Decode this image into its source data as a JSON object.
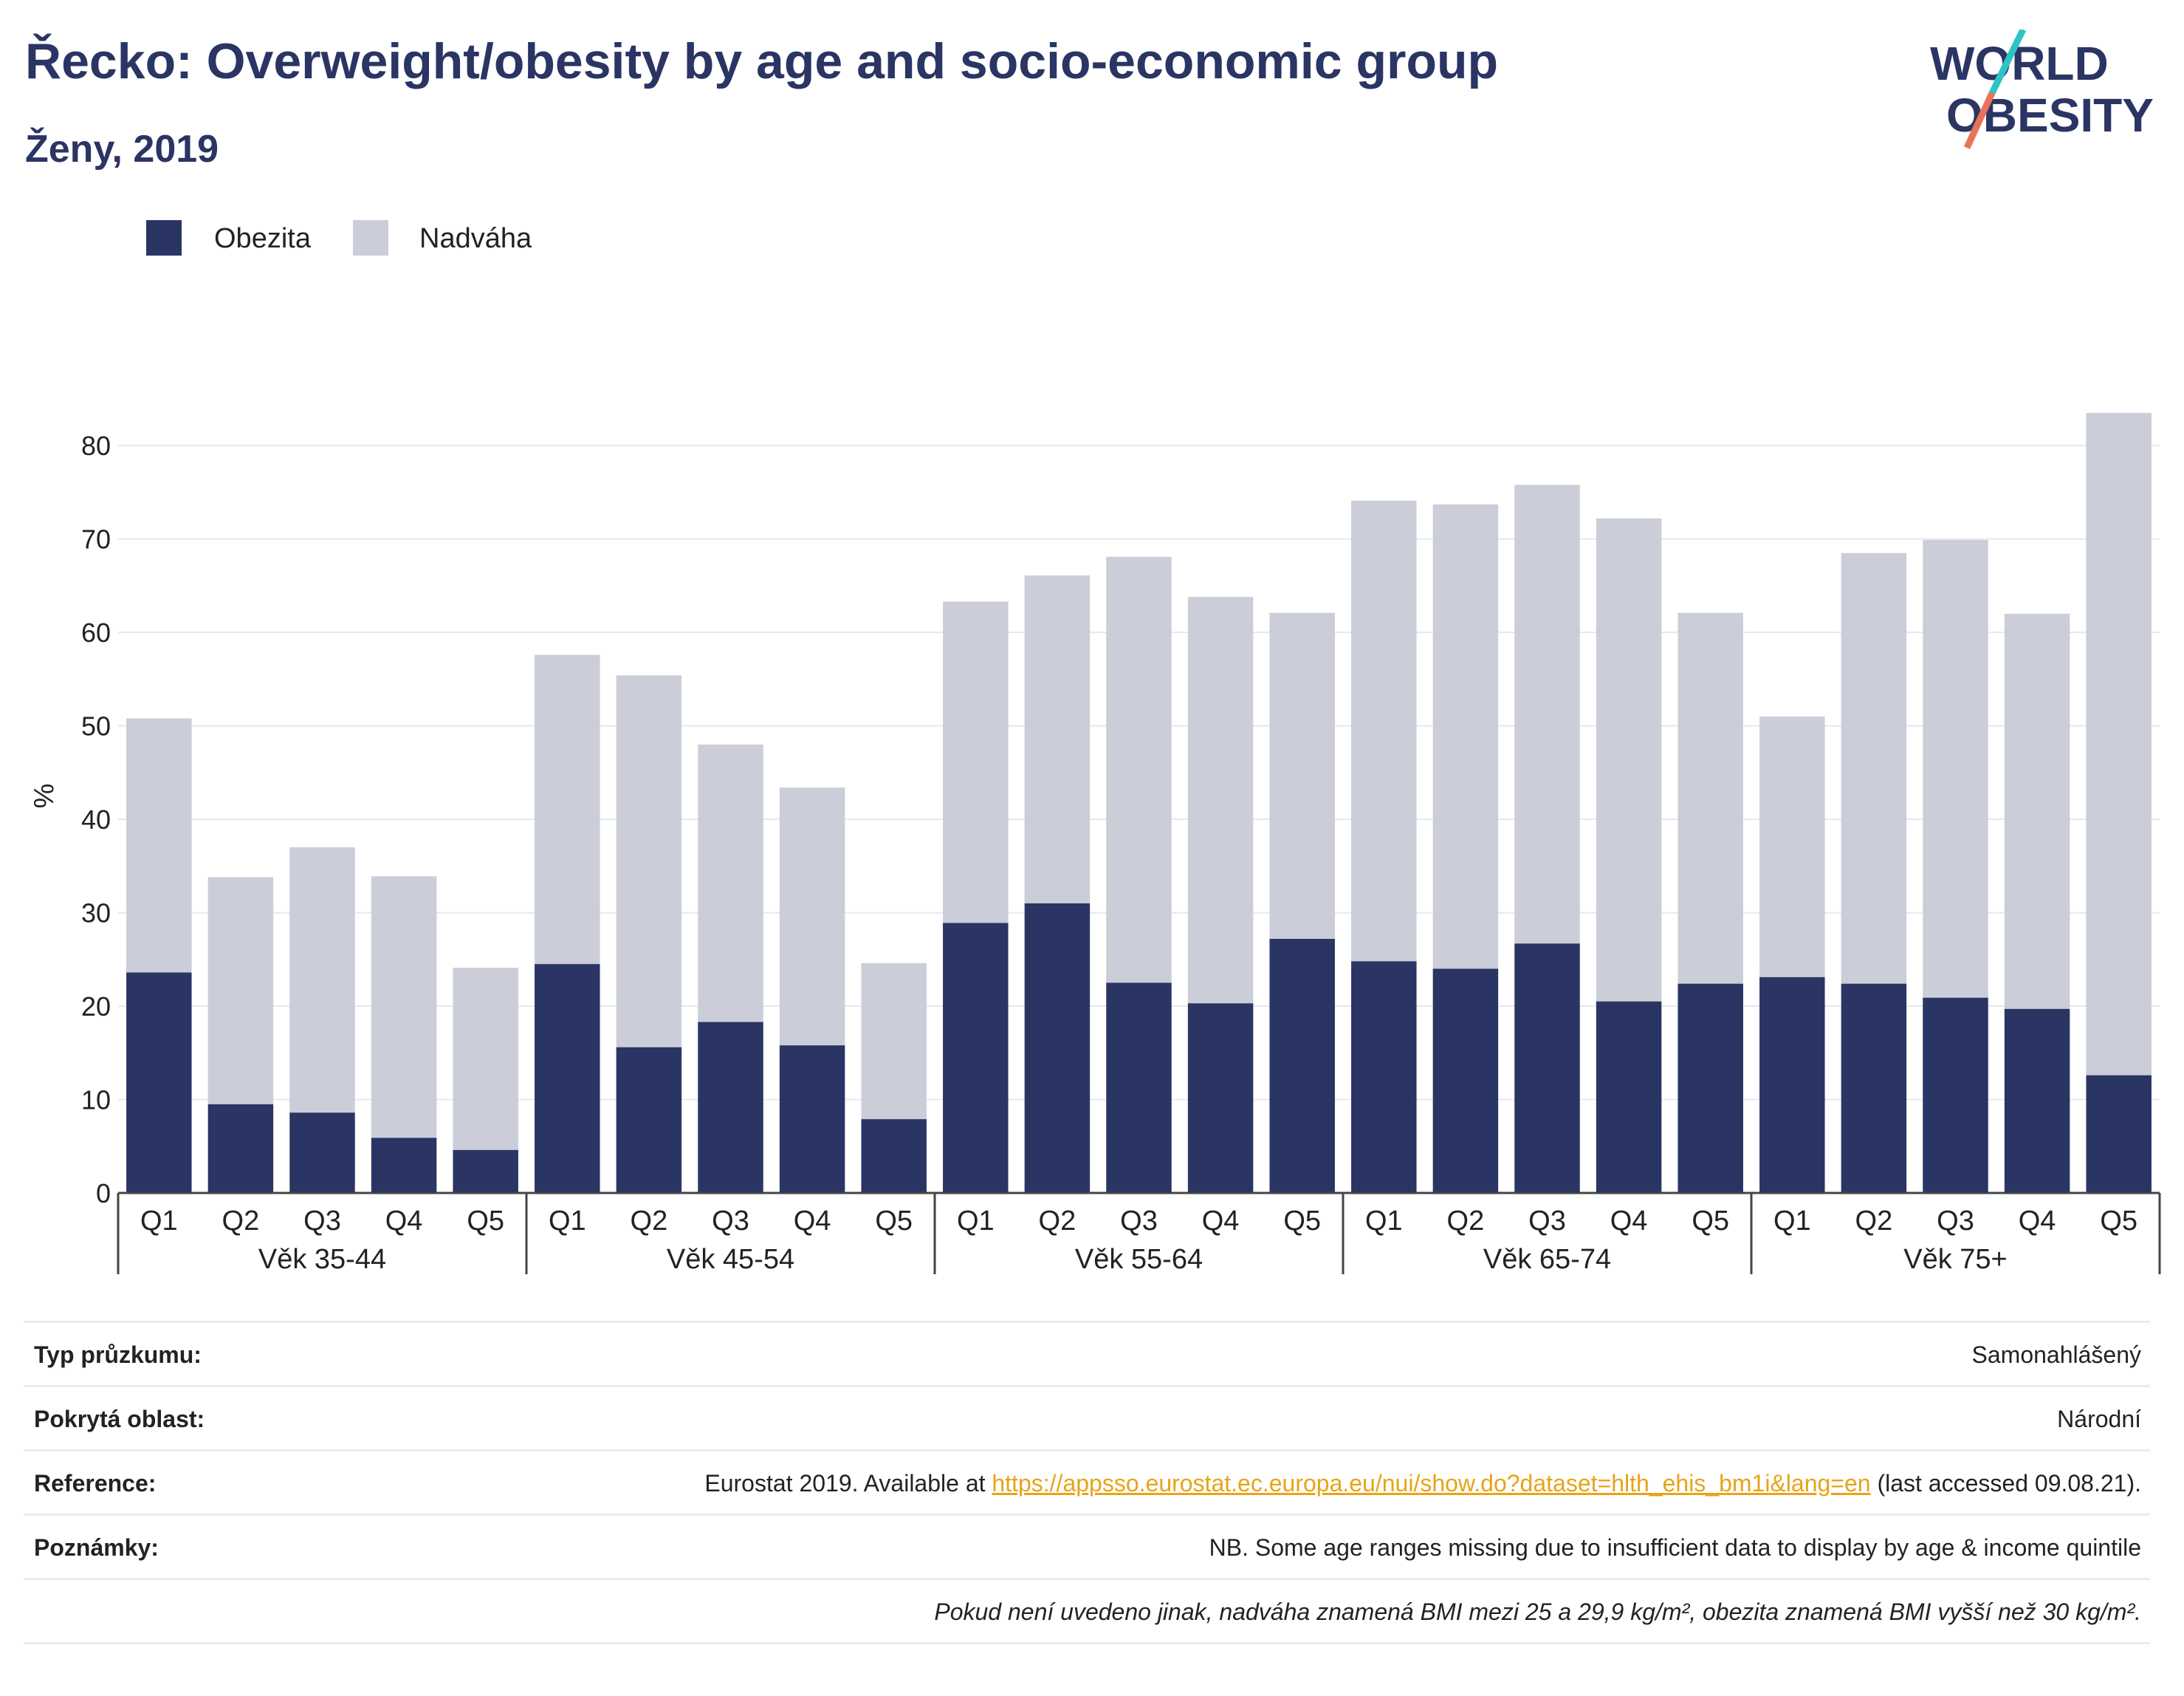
{
  "header": {
    "title": "Řecko: Overweight/obesity by age and socio-economic group",
    "subtitle": "Ženy, 2019"
  },
  "logo": {
    "line1": "WORLD",
    "line2": "OBESITY",
    "accent_colors": [
      "#2ec4c6",
      "#e8735a"
    ]
  },
  "legend": [
    {
      "label": "Obezita",
      "color": "#2a3564"
    },
    {
      "label": "Nadváha",
      "color": "#cbcdd8"
    }
  ],
  "chart_data": {
    "type": "bar",
    "stacked": true,
    "ylabel": "%",
    "ylim": [
      0,
      85
    ],
    "yticks": [
      0,
      10,
      20,
      30,
      40,
      50,
      60,
      70,
      80
    ],
    "grid": true,
    "groups": [
      {
        "label": "Věk 35-44",
        "categories": [
          "Q1",
          "Q2",
          "Q3",
          "Q4",
          "Q5"
        ]
      },
      {
        "label": "Věk 45-54",
        "categories": [
          "Q1",
          "Q2",
          "Q3",
          "Q4",
          "Q5"
        ]
      },
      {
        "label": "Věk 55-64",
        "categories": [
          "Q1",
          "Q2",
          "Q3",
          "Q4",
          "Q5"
        ]
      },
      {
        "label": "Věk 65-74",
        "categories": [
          "Q1",
          "Q2",
          "Q3",
          "Q4",
          "Q5"
        ]
      },
      {
        "label": "Věk 75+",
        "categories": [
          "Q1",
          "Q2",
          "Q3",
          "Q4",
          "Q5"
        ]
      }
    ],
    "series": [
      {
        "name": "Obezita",
        "color": "#2a3564",
        "values": [
          23.6,
          9.5,
          8.6,
          5.9,
          4.6,
          24.5,
          15.6,
          18.3,
          15.8,
          7.9,
          28.9,
          31.0,
          22.5,
          20.3,
          27.2,
          24.8,
          24.0,
          26.7,
          20.5,
          22.4,
          23.1,
          22.4,
          20.9,
          19.7,
          12.6
        ]
      },
      {
        "name": "Nadváha",
        "color": "#cbcdd8",
        "values": [
          27.2,
          24.3,
          28.4,
          28.0,
          19.5,
          33.1,
          39.8,
          29.7,
          27.6,
          16.7,
          34.4,
          35.1,
          45.6,
          43.5,
          34.9,
          49.3,
          49.7,
          49.1,
          51.7,
          39.7,
          27.9,
          46.1,
          49.0,
          42.3,
          70.9
        ]
      }
    ]
  },
  "meta": {
    "survey_type_label": "Typ průzkumu:",
    "survey_type_value": "Samonahlášený",
    "coverage_label": "Pokrytá oblast:",
    "coverage_value": "Národní",
    "reference_label": "Reference:",
    "reference_prefix": "Eurostat 2019. Available at ",
    "reference_link": "https://appsso.eurostat.ec.europa.eu/nui/show.do?dataset=hlth_ehis_bm1i&lang=en",
    "reference_suffix": " (last accessed 09.08.21).",
    "notes_label": "Poznámky:",
    "notes_value": "NB. Some age ranges missing due to insufficient data to display by age & income quintile",
    "bmi_note": "Pokud není uvedeno jinak, nadváha znamená BMI mezi 25 a 29,9 kg/m², obezita znamená BMI vyšší než 30 kg/m²."
  }
}
